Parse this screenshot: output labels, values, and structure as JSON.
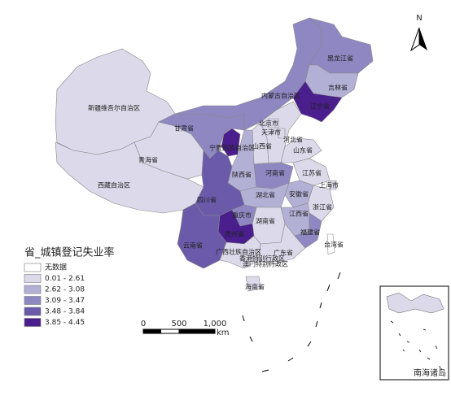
{
  "legend": {
    "title": "省_城镇登记失业率",
    "items": [
      {
        "label": "无数据",
        "color": "#ffffff"
      },
      {
        "label": "0.01 - 2.61",
        "color": "#dcdaea"
      },
      {
        "label": "2.62 - 3.08",
        "color": "#b3b0d6"
      },
      {
        "label": "3.09 - 3.47",
        "color": "#8e87c2"
      },
      {
        "label": "3.48 - 3.84",
        "color": "#6a5aa9"
      },
      {
        "label": "3.85 - 4.45",
        "color": "#4a1e8d"
      }
    ]
  },
  "provinces": [
    {
      "name": "新疆维吾尔自治区",
      "class": 1
    },
    {
      "name": "西藏自治区",
      "class": 1
    },
    {
      "name": "青海省",
      "class": 1
    },
    {
      "name": "甘肃省",
      "class": 3
    },
    {
      "name": "内蒙古自治区",
      "class": 3
    },
    {
      "name": "黑龙江省",
      "class": 3
    },
    {
      "name": "吉林省",
      "class": 2
    },
    {
      "name": "辽宁省",
      "class": 5
    },
    {
      "name": "宁夏回族自治区",
      "class": 5
    },
    {
      "name": "山西省",
      "class": 1
    },
    {
      "name": "河北省",
      "class": 1
    },
    {
      "name": "北京市",
      "class": 1
    },
    {
      "name": "天津市",
      "class": 1
    },
    {
      "name": "山东省",
      "class": 1
    },
    {
      "name": "陕西省",
      "class": 2
    },
    {
      "name": "河南省",
      "class": 3
    },
    {
      "name": "江苏省",
      "class": 1
    },
    {
      "name": "上海市",
      "class": 1
    },
    {
      "name": "安徽省",
      "class": 2
    },
    {
      "name": "湖北省",
      "class": 2
    },
    {
      "name": "四川省",
      "class": 4
    },
    {
      "name": "重庆市",
      "class": 3
    },
    {
      "name": "浙江省",
      "class": 1
    },
    {
      "name": "江西省",
      "class": 2
    },
    {
      "name": "湖南省",
      "class": 1
    },
    {
      "name": "贵州省",
      "class": 5
    },
    {
      "name": "福建省",
      "class": 3
    },
    {
      "name": "云南省",
      "class": 4
    },
    {
      "name": "广西壮族自治区",
      "class": 1
    },
    {
      "name": "广东省",
      "class": 1
    },
    {
      "name": "台湾省",
      "class": 0
    },
    {
      "name": "香港特别行政区",
      "class": 0
    },
    {
      "name": "澳门特别行政区",
      "class": 0
    },
    {
      "name": "海南省",
      "class": 1
    }
  ],
  "scale_bar": {
    "labels": [
      "0",
      "500",
      "1,000"
    ],
    "unit": "km"
  },
  "north_label": "N",
  "inset_label": "南海诸岛"
}
